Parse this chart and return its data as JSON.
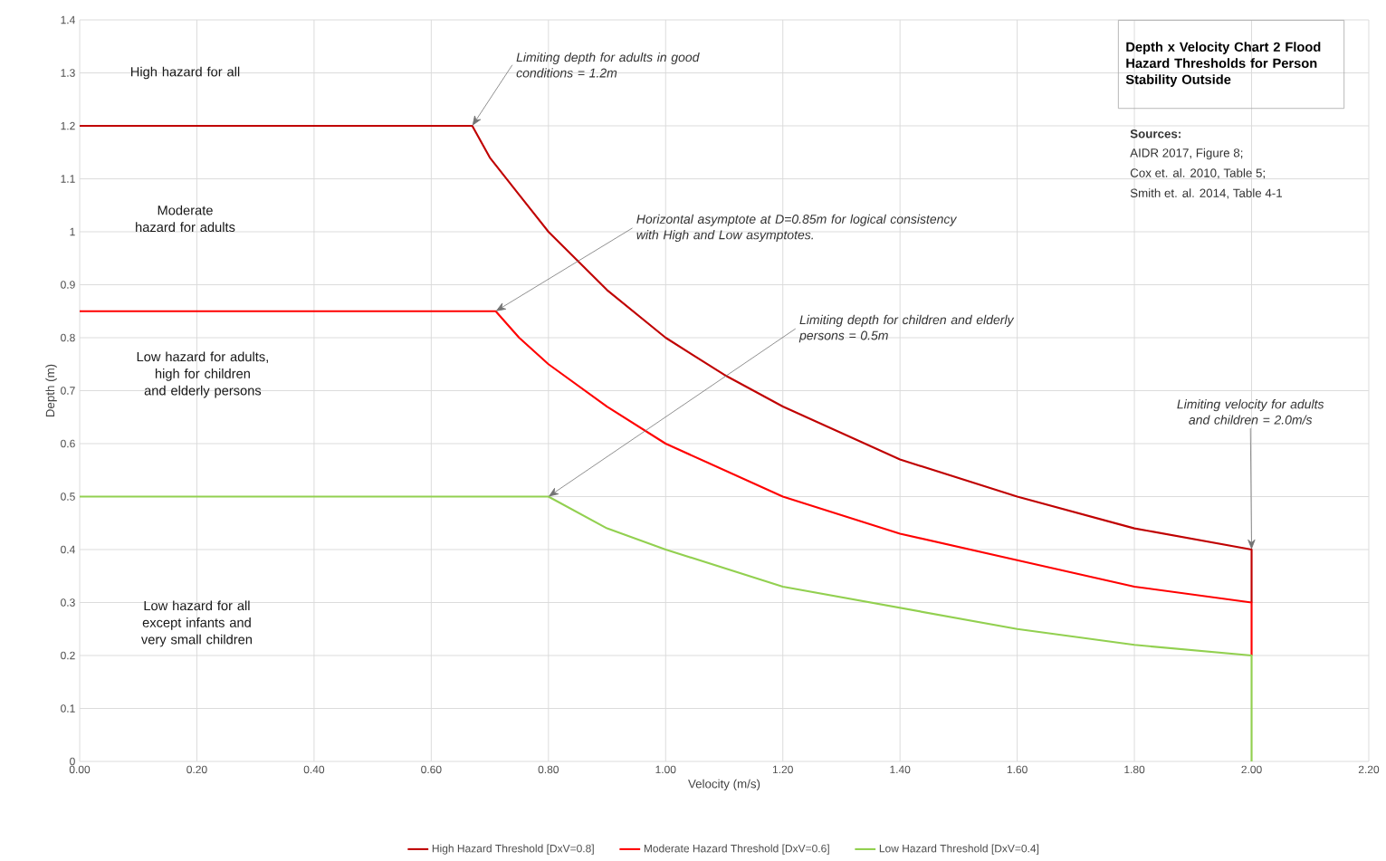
{
  "chart_data": {
    "type": "line",
    "title": "Depth x Velocity Chart 2 Flood Hazard Thresholds for Person Stability Outside",
    "xlabel": "Velocity (m/s)",
    "ylabel": "Depth (m)",
    "xlim": [
      0,
      2.2
    ],
    "ylim": [
      0,
      1.4
    ],
    "xticks": [
      {
        "value": 0,
        "label": "0.00"
      },
      {
        "value": 0.2,
        "label": "0.20"
      },
      {
        "value": 0.4,
        "label": "0.40"
      },
      {
        "value": 0.6,
        "label": "0.60"
      },
      {
        "value": 0.8,
        "label": "0.80"
      },
      {
        "value": 1.0,
        "label": "1.00"
      },
      {
        "value": 1.2,
        "label": "1.20"
      },
      {
        "value": 1.4,
        "label": "1.40"
      },
      {
        "value": 1.6,
        "label": "1.60"
      },
      {
        "value": 1.8,
        "label": "1.80"
      },
      {
        "value": 2.0,
        "label": "2.00"
      },
      {
        "value": 2.2,
        "label": "2.20"
      }
    ],
    "yticks": [
      0,
      0.1,
      0.2,
      0.3,
      0.4,
      0.5,
      0.6,
      0.7,
      0.8,
      0.9,
      1,
      1.1,
      1.2,
      1.3,
      1.4
    ],
    "grid": true,
    "legend": "bottom",
    "marker": "none",
    "line_style": "solid",
    "series": [
      {
        "name": "High Hazard Threshold [DxV=0.8]",
        "color": "#c00000",
        "x": [
          0,
          0.67,
          0.7,
          0.75,
          0.8,
          0.9,
          1.0,
          1.1,
          1.2,
          1.4,
          1.6,
          1.8,
          2.0,
          2.0
        ],
        "values": [
          1.2,
          1.2,
          1.14,
          1.07,
          1.0,
          0.89,
          0.8,
          0.73,
          0.67,
          0.57,
          0.5,
          0.44,
          0.4,
          0.3
        ]
      },
      {
        "name": "Moderate Hazard Threshold [DxV=0.6]",
        "color": "#ff0000",
        "x": [
          0,
          0.71,
          0.75,
          0.8,
          0.9,
          1.0,
          1.1,
          1.2,
          1.4,
          1.6,
          1.8,
          2.0,
          2.0
        ],
        "values": [
          0.85,
          0.85,
          0.8,
          0.75,
          0.67,
          0.6,
          0.55,
          0.5,
          0.43,
          0.38,
          0.33,
          0.3,
          0.2
        ]
      },
      {
        "name": "Low Hazard Threshold [DxV=0.4]",
        "color": "#92d050",
        "x": [
          0,
          0.8,
          0.9,
          1.0,
          1.2,
          1.4,
          1.6,
          1.8,
          2.0,
          2.0
        ],
        "values": [
          0.5,
          0.5,
          0.44,
          0.4,
          0.33,
          0.29,
          0.25,
          0.22,
          0.2,
          0
        ]
      }
    ],
    "annotations": [
      "High hazard for all",
      "Moderate hazard for adults",
      "Low hazard for adults, high for children and elderly persons",
      "Low hazard for all except infants and very small children",
      {
        "text": "Limiting depth for adults in good conditions = 1.2m",
        "x": 0.67,
        "y": 1.2
      },
      {
        "text": "Horizontal asymptote at D=0.85m for logical consistency with High and Low asymptotes.",
        "x": 0.71,
        "y": 0.85
      },
      {
        "text": "Limiting depth for children and elderly persons = 0.5m",
        "x": 0.8,
        "y": 0.5
      },
      {
        "text": "Limiting velocity for adults and children = 2.0m/s",
        "x": 2.0,
        "y": 0.4
      },
      "Sources:",
      "AIDR 2017, Figure 8;",
      "Cox et. al. 2010, Table 5;",
      "Smith et. al. 2014, Table 4-1"
    ]
  }
}
